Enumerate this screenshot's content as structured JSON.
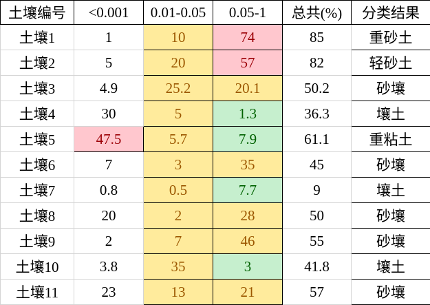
{
  "headers": [
    "土壤编号",
    "<0.001",
    "0.01-0.05",
    "0.05-1",
    "总共(%)",
    "分类结果"
  ],
  "rows": [
    {
      "id": "土壤1",
      "c1": "1",
      "c2": "10",
      "c3": "74",
      "total": "85",
      "cls": "重砂土"
    },
    {
      "id": "土壤2",
      "c1": "5",
      "c2": "20",
      "c3": "57",
      "total": "82",
      "cls": "轻砂土"
    },
    {
      "id": "土壤3",
      "c1": "4.9",
      "c2": "25.2",
      "c3": "20.1",
      "total": "50.2",
      "cls": "砂壤"
    },
    {
      "id": "土壤4",
      "c1": "30",
      "c2": "5",
      "c3": "1.3",
      "total": "36.3",
      "cls": "壤土"
    },
    {
      "id": "土壤5",
      "c1": "47.5",
      "c2": "5.7",
      "c3": "7.9",
      "total": "61.1",
      "cls": "重粘土"
    },
    {
      "id": "土壤6",
      "c1": "7",
      "c2": "3",
      "c3": "35",
      "total": "45",
      "cls": "砂壤"
    },
    {
      "id": "土壤7",
      "c1": "0.8",
      "c2": "0.5",
      "c3": "7.7",
      "total": "9",
      "cls": "壤土"
    },
    {
      "id": "土壤8",
      "c1": "20",
      "c2": "2",
      "c3": "28",
      "total": "50",
      "cls": "砂壤"
    },
    {
      "id": "土壤9",
      "c1": "2",
      "c2": "7",
      "c3": "46",
      "total": "55",
      "cls": "砂壤"
    },
    {
      "id": "土壤10",
      "c1": "3.8",
      "c2": "35",
      "c3": "3",
      "total": "41.8",
      "cls": "壤土"
    },
    {
      "id": "土壤11",
      "c1": "23",
      "c2": "13",
      "c3": "21",
      "total": "57",
      "cls": "砂壤"
    }
  ],
  "colors": {
    "yellow_fill": "#ffeb9c",
    "yellow_text": "#9c5700",
    "red_fill": "#ffc7ce",
    "red_text": "#9c0006",
    "green_fill": "#c6efce",
    "green_text": "#006100"
  }
}
